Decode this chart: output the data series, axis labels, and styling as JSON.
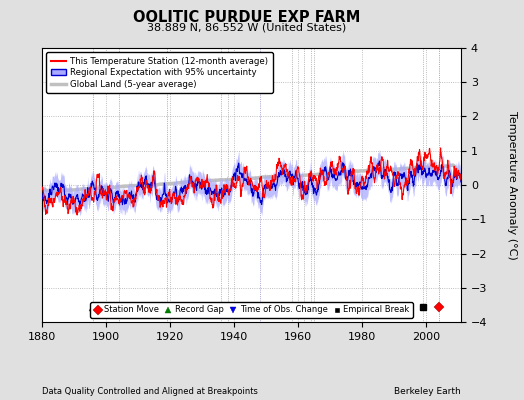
{
  "title": "OOLITIC PURDUE EXP FARM",
  "subtitle": "38.889 N, 86.552 W (United States)",
  "xlabel_note": "Data Quality Controlled and Aligned at Breakpoints",
  "credit": "Berkeley Earth",
  "ylabel": "Temperature Anomaly (°C)",
  "xlim": [
    1880,
    2011
  ],
  "ylim": [
    -4,
    4
  ],
  "yticks": [
    -4,
    -3,
    -2,
    -1,
    0,
    1,
    2,
    3,
    4
  ],
  "xticks": [
    1880,
    1900,
    1920,
    1940,
    1960,
    1980,
    2000
  ],
  "bg_color": "#e0e0e0",
  "plot_bg_color": "#ffffff",
  "grid_color": "#aaaaaa",
  "station_color": "#ff0000",
  "regional_color": "#0000cc",
  "regional_fill_color": "#aaaaff",
  "global_color": "#c0c0c0",
  "station_moves": [
    2004
  ],
  "record_gaps": [
    1896,
    1904,
    1919
  ],
  "obs_changes": [
    1948
  ],
  "emp_breaks": [
    1936,
    1938,
    1958,
    1962,
    1964,
    1965,
    1999
  ],
  "seed": 42
}
